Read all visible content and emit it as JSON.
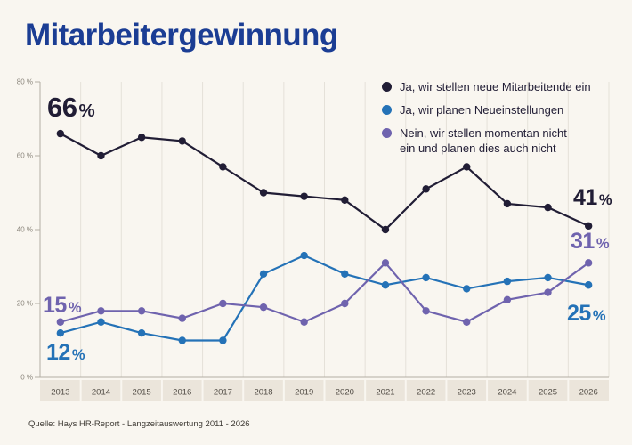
{
  "title": "Mitarbeitergewinnung",
  "source": "Quelle: Hays HR-Report - Langzeitauswertung 2011 - 2026",
  "colors": {
    "background": "#f9f6f0",
    "band": "#ebe5db",
    "grid": "#e5e1d9",
    "axis": "#b3aea4",
    "tick_text": "#8c877d",
    "year_text": "#504b44",
    "navy": "#211d35",
    "blue": "#2472b7",
    "purple": "#6f63ae",
    "title_color": "#1b3d94"
  },
  "legend": [
    {
      "label": "Ja, wir stellen neue Mitarbeitende ein",
      "color": "#211d35"
    },
    {
      "label": "Ja, wir planen Neueinstellungen",
      "color": "#2472b7"
    },
    {
      "label": "Nein, wir stellen momentan nicht\nein und planen dies auch nicht",
      "color": "#6f63ae"
    }
  ],
  "chart_data": {
    "type": "line",
    "title": "Mitarbeitergewinnung",
    "categories": [
      "2013",
      "2014",
      "2015",
      "2016",
      "2017",
      "2018",
      "2019",
      "2020",
      "2021",
      "2022",
      "2023",
      "2024",
      "2025",
      "2026"
    ],
    "series": [
      {
        "name": "Ja, wir stellen neue Mitarbeitende ein",
        "color": "#211d35",
        "values": [
          66,
          60,
          65,
          64,
          57,
          50,
          49,
          48,
          40,
          51,
          57,
          47,
          46,
          41
        ]
      },
      {
        "name": "Ja, wir planen Neueinstellungen",
        "color": "#2472b7",
        "values": [
          12,
          15,
          12,
          10,
          10,
          28,
          33,
          28,
          25,
          27,
          24,
          26,
          27,
          25
        ]
      },
      {
        "name": "Nein, wir stellen momentan nicht ein und planen dies auch nicht",
        "color": "#6f63ae",
        "values": [
          15,
          18,
          18,
          16,
          20,
          19,
          15,
          20,
          31,
          18,
          15,
          21,
          23,
          31
        ]
      }
    ],
    "xlabel": "",
    "ylabel": "",
    "ylim": [
      0,
      80
    ],
    "yticks": [
      {
        "value": 0,
        "label": "0 %"
      },
      {
        "value": 20,
        "label": "20 %"
      },
      {
        "value": 40,
        "label": "40 %"
      },
      {
        "value": 60,
        "label": "60 %"
      },
      {
        "value": 80,
        "label": "80 %"
      }
    ],
    "grid": "vertical",
    "legend_position": "top-right",
    "annotations": [
      {
        "value": "66",
        "unit": "%",
        "series": "Ja, wir stellen neue Mitarbeitende ein",
        "year": "2013"
      },
      {
        "value": "15",
        "unit": "%",
        "series": "Nein, wir stellen momentan nicht ein und planen dies auch nicht",
        "year": "2013"
      },
      {
        "value": "12",
        "unit": "%",
        "series": "Ja, wir planen Neueinstellungen",
        "year": "2013"
      },
      {
        "value": "41",
        "unit": "%",
        "series": "Ja, wir stellen neue Mitarbeitende ein",
        "year": "2026"
      },
      {
        "value": "31",
        "unit": "%",
        "series": "Nein, wir stellen momentan nicht ein und planen dies auch nicht",
        "year": "2026"
      },
      {
        "value": "25",
        "unit": "%",
        "series": "Ja, wir planen Neueinstellungen",
        "year": "2026"
      }
    ]
  }
}
